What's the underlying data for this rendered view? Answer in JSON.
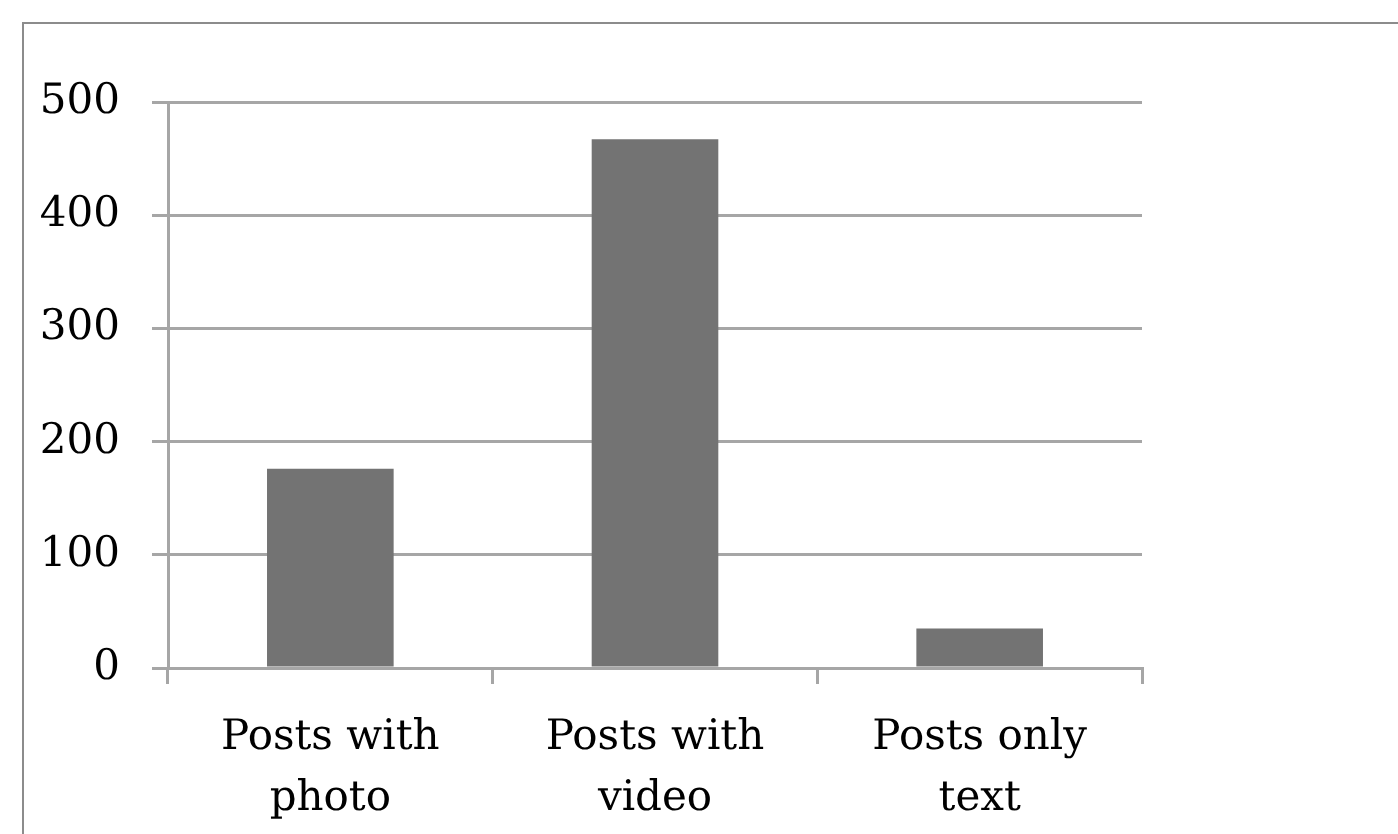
{
  "chart_data": {
    "type": "bar",
    "categories": [
      "Posts with photo",
      "Posts with video",
      "Posts only text"
    ],
    "values": [
      176,
      467,
      35
    ],
    "color": "#737373",
    "ylim": [
      0,
      500
    ],
    "yticks": [
      0,
      100,
      200,
      300,
      400,
      500
    ],
    "grid": "y"
  }
}
